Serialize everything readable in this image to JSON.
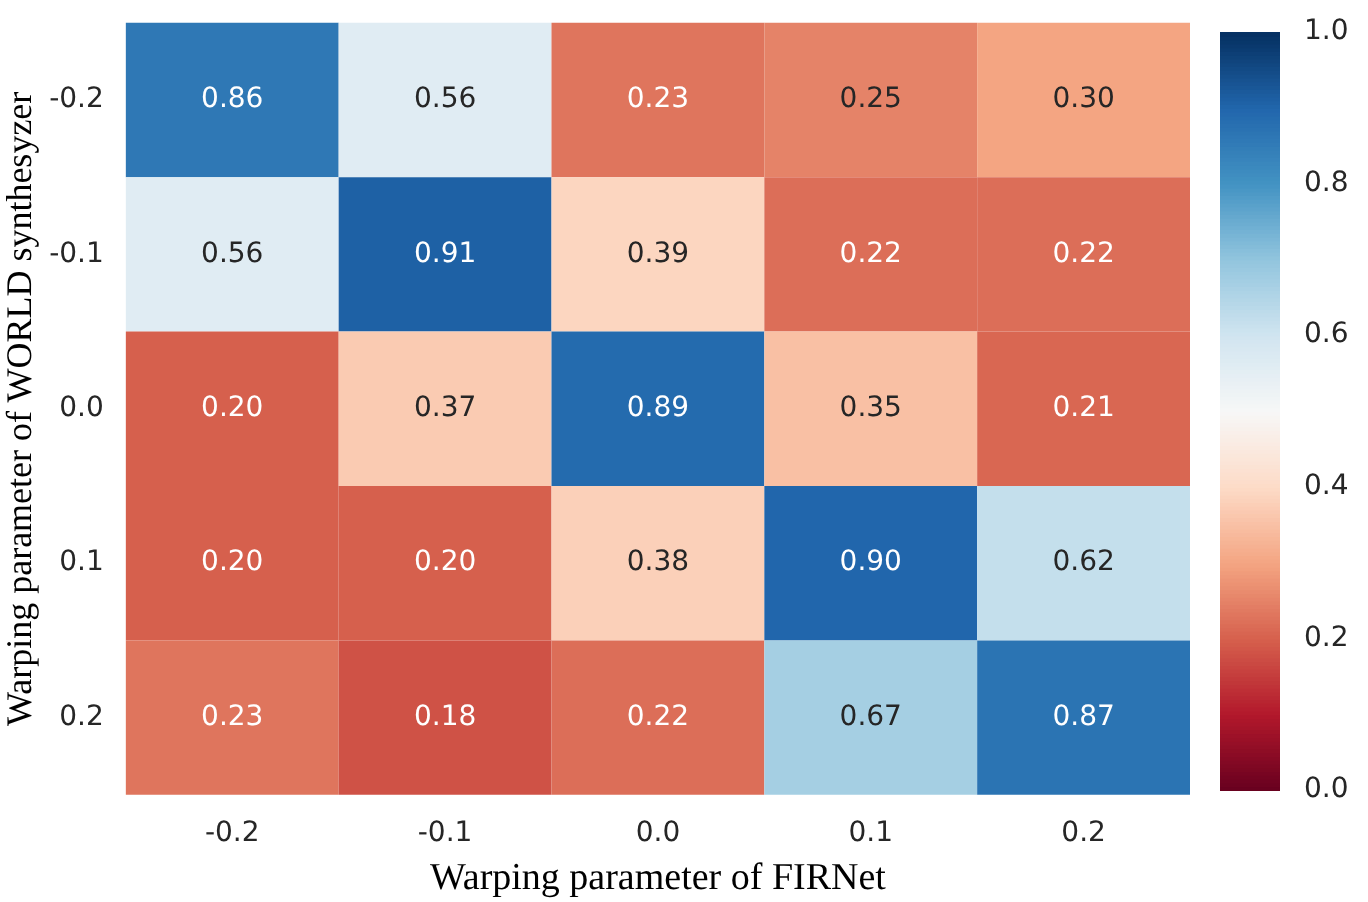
{
  "chart_data": {
    "type": "heatmap",
    "xlabel": "Warping parameter of FIRNet",
    "ylabel": "Warping parameter of WORLD synthesyzer",
    "categories": [
      "-0.2",
      "-0.1",
      "0.0",
      "0.1",
      "0.2"
    ],
    "y_categories": [
      "-0.2",
      "-0.1",
      "0.0",
      "0.1",
      "0.2"
    ],
    "cells": [
      [
        0.86,
        0.56,
        0.23,
        0.25,
        0.3
      ],
      [
        0.56,
        0.91,
        0.39,
        0.22,
        0.22
      ],
      [
        0.2,
        0.37,
        0.89,
        0.35,
        0.21
      ],
      [
        0.2,
        0.2,
        0.38,
        0.9,
        0.62
      ],
      [
        0.23,
        0.18,
        0.22,
        0.67,
        0.87
      ]
    ],
    "cell_labels": [
      [
        "0.86",
        "0.56",
        "0.23",
        "0.25",
        "0.30"
      ],
      [
        "0.56",
        "0.91",
        "0.39",
        "0.22",
        "0.22"
      ],
      [
        "0.20",
        "0.37",
        "0.89",
        "0.35",
        "0.21"
      ],
      [
        "0.20",
        "0.20",
        "0.38",
        "0.90",
        "0.62"
      ],
      [
        "0.23",
        "0.18",
        "0.22",
        "0.67",
        "0.87"
      ]
    ],
    "data_labels": true,
    "clim": [
      0,
      1
    ],
    "cticks": [
      {
        "value": 0,
        "label": "0.0"
      },
      {
        "value": 0.2,
        "label": "0.2"
      },
      {
        "value": 0.4,
        "label": "0.4"
      },
      {
        "value": 0.6,
        "label": "0.6"
      },
      {
        "value": 0.8,
        "label": "0.8"
      },
      {
        "value": 1,
        "label": "1.0"
      }
    ]
  }
}
